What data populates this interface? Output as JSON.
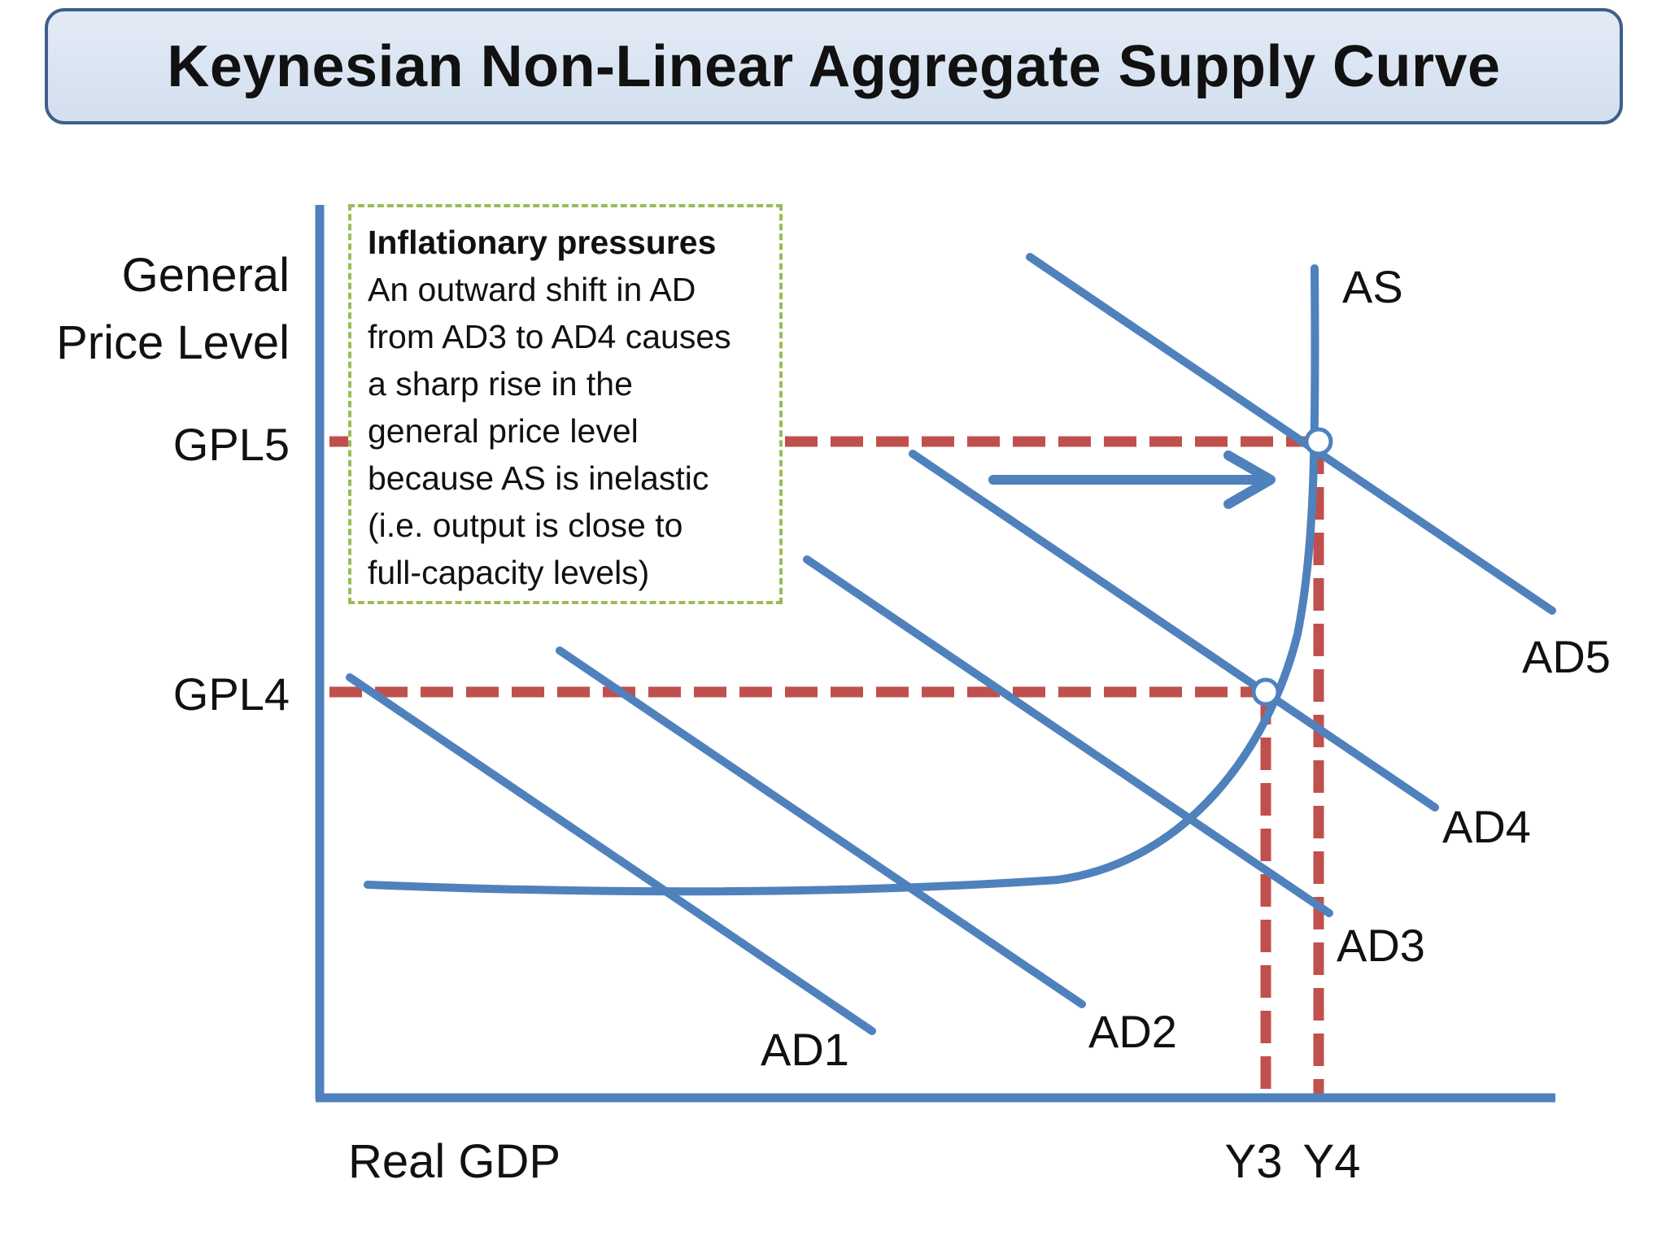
{
  "title": "Keynesian Non-Linear Aggregate Supply Curve",
  "y_axis_label_line1": "General",
  "y_axis_label_line2": "Price Level",
  "x_axis_label": "Real GDP",
  "price_levels": [
    "GPL5",
    "GPL4"
  ],
  "output_levels": [
    "Y3",
    "Y4"
  ],
  "supply_curve_label": "AS",
  "demand_curve_labels": [
    "AD1",
    "AD2",
    "AD3",
    "AD4",
    "AD5"
  ],
  "note": {
    "title": "Inflationary pressures",
    "body": "An outward shift in AD\nfrom AD3 to AD4 causes\na sharp rise in the\ngeneral price level\nbecause AS is inelastic\n(i.e. output is close to\nfull-capacity levels)"
  },
  "colors": {
    "curve": "#4f81bd",
    "guide": "#c0504d",
    "note_border": "#9bbb59",
    "title_border": "#3e5f8a",
    "title_fill": "#dce6f2"
  }
}
